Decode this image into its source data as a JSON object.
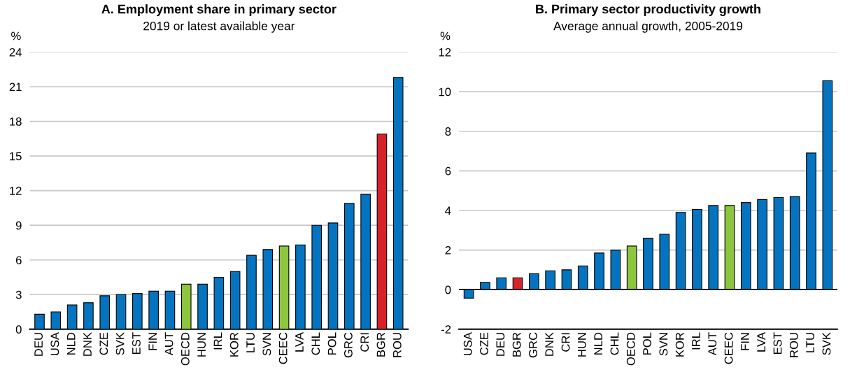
{
  "chart_data": [
    {
      "type": "bar",
      "title": "A. Employment share in primary sector",
      "subtitle": "2019 or latest available year",
      "ylabel": "%",
      "categories": [
        "DEU",
        "USA",
        "NLD",
        "DNK",
        "CZE",
        "SVK",
        "EST",
        "FIN",
        "AUT",
        "OECD",
        "HUN",
        "IRL",
        "KOR",
        "LTU",
        "SVN",
        "CEEC",
        "LVA",
        "CHL",
        "POL",
        "GRC",
        "CRI",
        "BGR",
        "ROU"
      ],
      "values": [
        1.3,
        1.5,
        2.1,
        2.3,
        2.9,
        3.0,
        3.1,
        3.3,
        3.3,
        3.9,
        3.9,
        4.5,
        5.0,
        6.4,
        6.9,
        7.2,
        7.3,
        9.0,
        9.2,
        10.9,
        11.7,
        16.9,
        21.8
      ],
      "colors": [
        "#0474c0",
        "#0474c0",
        "#0474c0",
        "#0474c0",
        "#0474c0",
        "#0474c0",
        "#0474c0",
        "#0474c0",
        "#0474c0",
        "#8cc63f",
        "#0474c0",
        "#0474c0",
        "#0474c0",
        "#0474c0",
        "#0474c0",
        "#8cc63f",
        "#0474c0",
        "#0474c0",
        "#0474c0",
        "#0474c0",
        "#0474c0",
        "#d7222a",
        "#0474c0"
      ],
      "ylim": [
        0,
        24
      ],
      "yticks": [
        0,
        3,
        6,
        9,
        12,
        15,
        18,
        21,
        24
      ],
      "grid": "y"
    },
    {
      "type": "bar",
      "title": "B. Primary sector productivity growth",
      "subtitle": "Average annual growth, 2005-2019",
      "ylabel": "%",
      "categories": [
        "USA",
        "CZE",
        "DEU",
        "BGR",
        "GRC",
        "DNK",
        "CRI",
        "HUN",
        "NLD",
        "CHL",
        "OECD",
        "POL",
        "SVN",
        "KOR",
        "IRL",
        "AUT",
        "CEEC",
        "FIN",
        "LVA",
        "EST",
        "ROU",
        "LTU",
        "SVK"
      ],
      "values": [
        -0.43,
        0.37,
        0.6,
        0.6,
        0.8,
        0.95,
        1.0,
        1.2,
        1.85,
        2.0,
        2.2,
        2.6,
        2.8,
        3.9,
        4.05,
        4.25,
        4.25,
        4.4,
        4.55,
        4.65,
        4.7,
        6.9,
        10.55
      ],
      "colors": [
        "#0474c0",
        "#0474c0",
        "#0474c0",
        "#d7222a",
        "#0474c0",
        "#0474c0",
        "#0474c0",
        "#0474c0",
        "#0474c0",
        "#0474c0",
        "#8cc63f",
        "#0474c0",
        "#0474c0",
        "#0474c0",
        "#0474c0",
        "#0474c0",
        "#8cc63f",
        "#0474c0",
        "#0474c0",
        "#0474c0",
        "#0474c0",
        "#0474c0",
        "#0474c0"
      ],
      "ylim": [
        -2,
        12
      ],
      "yticks": [
        -2,
        0,
        2,
        4,
        6,
        8,
        10,
        12
      ],
      "grid": "y",
      "ref_lines": [
        {
          "axis": "y",
          "value": 0,
          "label": null,
          "color": "#000000"
        }
      ]
    }
  ]
}
